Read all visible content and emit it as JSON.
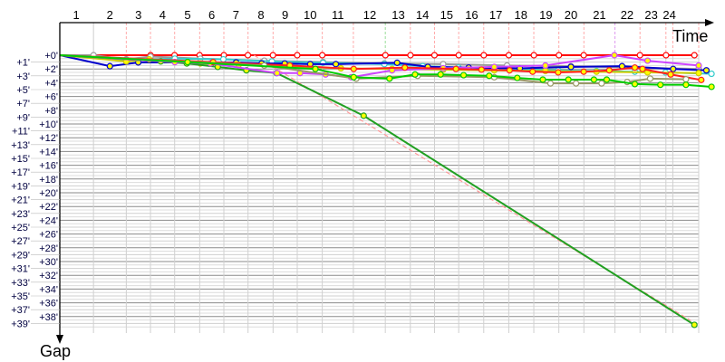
{
  "chart_data": {
    "type": "line",
    "xlabel": "Time",
    "ylabel": "Gap",
    "x_tick_labels": [
      "1",
      "2",
      "3",
      "4",
      "5",
      "6",
      "7",
      "8",
      "9",
      "10",
      "11",
      "12",
      "13",
      "14",
      "15",
      "16",
      "17",
      "18",
      "19",
      "20",
      "21",
      "22",
      "23",
      "24"
    ],
    "y_tick_labels": [
      "+0'",
      "+1'",
      "+2'",
      "+3'",
      "+4'",
      "+5'",
      "+6'",
      "+7'",
      "+8'",
      "+9'",
      "+10'",
      "+11'",
      "+12'",
      "+13'",
      "+14'",
      "+15'",
      "+16'",
      "+17'",
      "+18'",
      "+19'",
      "+20'",
      "+21'",
      "+22'",
      "+23'",
      "+24'",
      "+25'",
      "+26'",
      "+27'",
      "+28'",
      "+29'",
      "+30'",
      "+31'",
      "+32'",
      "+33'",
      "+34'",
      "+35'",
      "+36'",
      "+37'",
      "+38'",
      "+39'"
    ],
    "ylim": [
      0,
      39
    ],
    "y_inverted": true,
    "grid": true,
    "series": [
      {
        "color": "#ff0000",
        "marker": "#ffffff",
        "x": [
          0,
          3.55,
          4.49,
          5.47,
          6.42,
          7.36,
          8.34,
          9.29,
          10.27,
          12.74,
          13.72,
          14.66,
          15.61,
          16.59,
          17.57,
          18.55,
          19.53,
          20.5,
          22.7,
          23.72,
          24.83
        ],
        "y": [
          0,
          0,
          0,
          0,
          0,
          0,
          0,
          0,
          0,
          0,
          0,
          0,
          0,
          0,
          0,
          0,
          0,
          0,
          0,
          0,
          0
        ]
      },
      {
        "color": "#ff9999",
        "dashed": true,
        "x": [
          7.6,
          24.7
        ],
        "y": [
          0,
          38.6
        ]
      },
      {
        "color": "#999999",
        "marker": "#ffffff",
        "x": [
          0,
          1.32,
          2.6,
          3.55,
          5.5,
          8,
          10.3,
          12.7,
          15,
          17.5,
          20,
          22.5,
          25
        ],
        "y": [
          0,
          0,
          0.6,
          0.2,
          0.5,
          0.8,
          1,
          1.2,
          1.3,
          1.5,
          1.6,
          1.8,
          2
        ]
      },
      {
        "color": "#33cccc",
        "marker": "#ffffff",
        "x": [
          0,
          2.6,
          4.5,
          6.4,
          8.3,
          10.3,
          12.7,
          14.2,
          15.6,
          17.1,
          18.5,
          19.5,
          21,
          22.5,
          23.7,
          25.5
        ],
        "y": [
          0,
          0.7,
          0.5,
          0.6,
          0.9,
          1.1,
          1.3,
          1.6,
          1.8,
          1.9,
          2.1,
          2.2,
          2.3,
          2.4,
          2.5,
          2.7
        ]
      },
      {
        "color": "#0000cc",
        "marker": "#ffff00",
        "x": [
          0,
          1.96,
          3.07,
          6.9,
          7.9,
          8.8,
          9.8,
          10.8,
          13.2,
          14.4,
          16,
          18,
          20,
          22,
          24,
          25.3
        ],
        "y": [
          0,
          1.6,
          1.05,
          1.05,
          1.2,
          1.2,
          1.3,
          1.3,
          1.1,
          1.7,
          1.8,
          1.9,
          1.7,
          1.6,
          2,
          2.2
        ]
      },
      {
        "color": "#cccc00",
        "marker": "#ffff00",
        "x": [
          0,
          2.6,
          3.5,
          4.5,
          5.5,
          7,
          9,
          11,
          13,
          15,
          17,
          19,
          21,
          23,
          25
        ],
        "y": [
          0,
          0.9,
          0.6,
          1,
          1.2,
          1.4,
          1.6,
          1.9,
          2,
          2.1,
          2.2,
          2.3,
          2.4,
          2.5,
          2.6
        ]
      },
      {
        "color": "#22a022",
        "marker": "#ffff00",
        "x": [
          0,
          3.95,
          4.97,
          6.18,
          7.3,
          8.48,
          11.89,
          24.83
        ],
        "y": [
          0,
          0.9,
          1.2,
          1.7,
          2.2,
          2.6,
          8.8,
          39.2
        ]
      },
      {
        "color": "#cc44ff",
        "marker": "#ffff00",
        "x": [
          0,
          4.5,
          5.9,
          8.5,
          9.4,
          10.4,
          11.4,
          13,
          15,
          17,
          19,
          21.7,
          23,
          25
        ],
        "y": [
          0,
          1,
          1.2,
          2.6,
          2.6,
          2.8,
          3.2,
          2.2,
          1.9,
          1.7,
          1.5,
          0,
          0.8,
          1.5
        ]
      },
      {
        "color": "#ff2020",
        "marker": "#ffff00",
        "x": [
          0,
          6,
          9,
          11.5,
          13.5,
          15.5,
          16.5,
          17.6,
          18.5,
          19.5,
          20.5,
          21.5,
          22.5,
          22.8,
          23.9,
          25.1
        ],
        "y": [
          0,
          1,
          1.5,
          2,
          1.8,
          2,
          2.1,
          2.2,
          2.4,
          2.5,
          2.4,
          2.2,
          1.8,
          2,
          2.8,
          3.6
        ]
      },
      {
        "color": "#999966",
        "marker": "#ffffff",
        "x": [
          0,
          8,
          11.6,
          14,
          17,
          19.2,
          20.2,
          21.2,
          22.2,
          23.1,
          24.5
        ],
        "y": [
          0,
          1.5,
          3.4,
          3,
          3.2,
          4.1,
          4.1,
          4.1,
          3.9,
          3.4,
          3.5
        ]
      },
      {
        "color": "#00cc00",
        "marker": "#ffff00",
        "x": [
          0,
          5,
          10,
          11.5,
          12.9,
          13.9,
          14.9,
          15.8,
          16.8,
          17.9,
          18.9,
          19.9,
          20.9,
          21.4,
          22.5,
          23.5,
          24.5,
          25.5
        ],
        "y": [
          0,
          1,
          2,
          3.2,
          3.4,
          2.8,
          2.8,
          2.9,
          3,
          3.3,
          3.55,
          3.55,
          3.55,
          3.55,
          4.2,
          4.3,
          4.3,
          4.6
        ]
      }
    ]
  }
}
